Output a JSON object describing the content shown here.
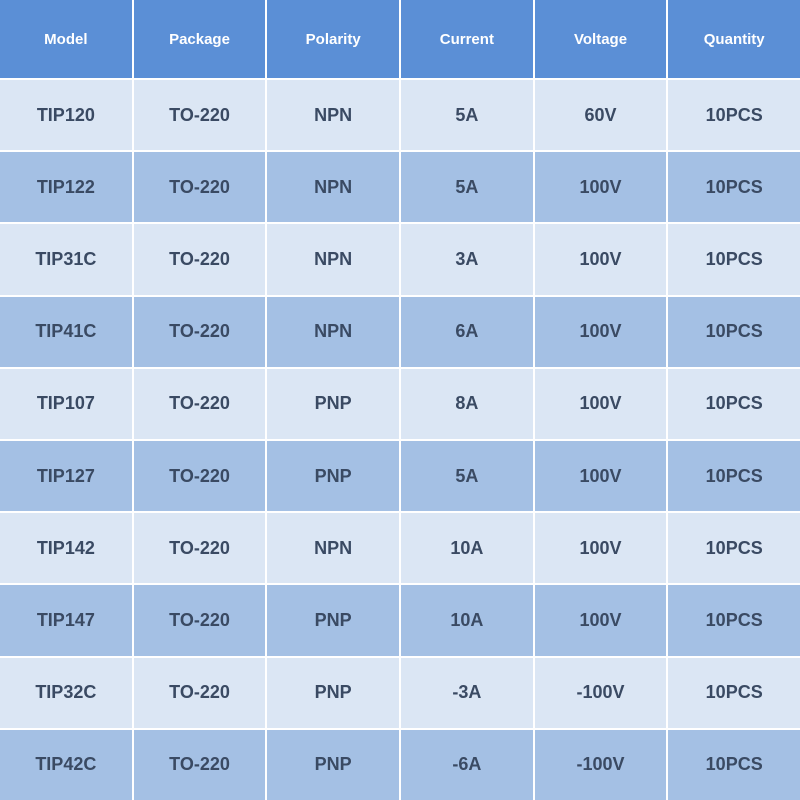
{
  "table": {
    "type": "table",
    "columns": [
      "Model",
      "Package",
      "Polarity",
      "Current",
      "Voltage",
      "Quantity"
    ],
    "rows": [
      [
        "TIP120",
        "TO-220",
        "NPN",
        "5A",
        "60V",
        "10PCS"
      ],
      [
        "TIP122",
        "TO-220",
        "NPN",
        "5A",
        "100V",
        "10PCS"
      ],
      [
        "TIP31C",
        "TO-220",
        "NPN",
        "3A",
        "100V",
        "10PCS"
      ],
      [
        "TIP41C",
        "TO-220",
        "NPN",
        "6A",
        "100V",
        "10PCS"
      ],
      [
        "TIP107",
        "TO-220",
        "PNP",
        "8A",
        "100V",
        "10PCS"
      ],
      [
        "TIP127",
        "TO-220",
        "PNP",
        "5A",
        "100V",
        "10PCS"
      ],
      [
        "TIP142",
        "TO-220",
        "NPN",
        "10A",
        "100V",
        "10PCS"
      ],
      [
        "TIP147",
        "TO-220",
        "PNP",
        "10A",
        "100V",
        "10PCS"
      ],
      [
        "TIP32C",
        "TO-220",
        "PNP",
        "-3A",
        "-100V",
        "10PCS"
      ],
      [
        "TIP42C",
        "TO-220",
        "PNP",
        "-6A",
        "-100V",
        "10PCS"
      ]
    ],
    "header_bg": "#5b8fd6",
    "header_text_color": "#ffffff",
    "header_fontsize": 15,
    "row_bg_odd": "#dbe6f4",
    "row_bg_even": "#a4c0e4",
    "cell_text_color": "#3a4a63",
    "cell_fontsize": 18,
    "border_color": "#ffffff",
    "border_width": 2
  }
}
